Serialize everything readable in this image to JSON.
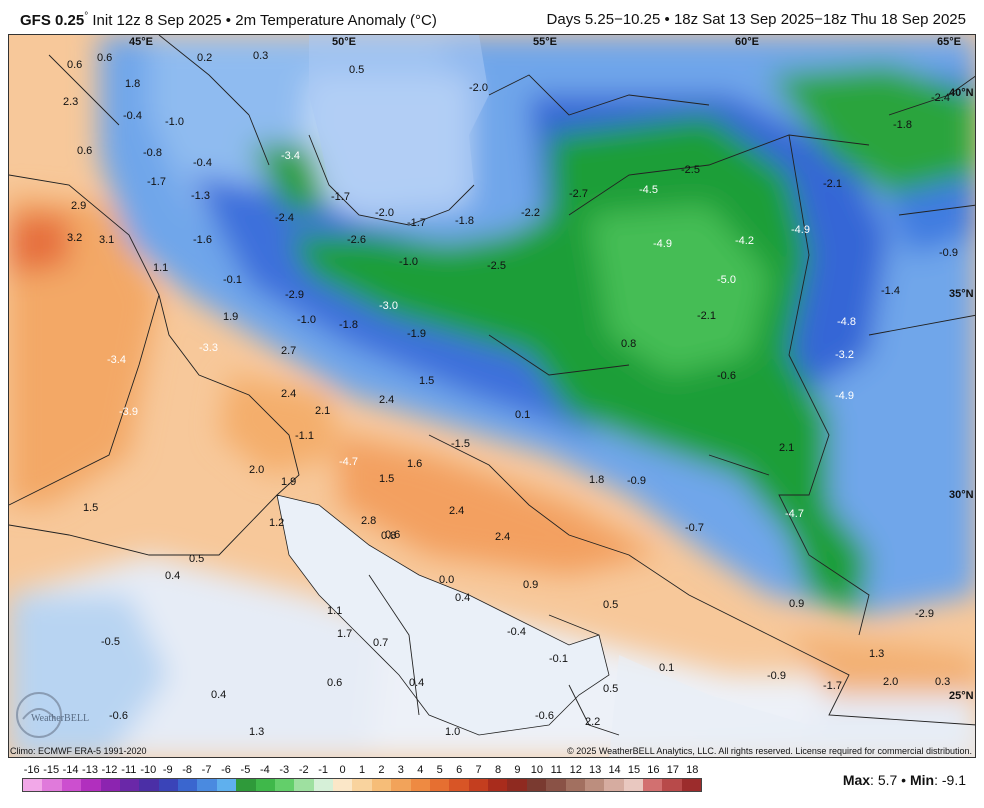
{
  "header": {
    "model": "GFS 0.25",
    "degree": "°",
    "init": " Init 12z 8 Sep 2025 • 2m Temperature Anomaly (°C)",
    "valid": "Days 5.25−10.25 • 18z Sat 13 Sep 2025−18z Thu 18 Sep 2025"
  },
  "map": {
    "lon_labels": [
      "45°E",
      "50°E",
      "55°E",
      "60°E",
      "65°E"
    ],
    "lat_labels": [
      "40°N",
      "35°N",
      "30°N",
      "25°N"
    ],
    "watermark": "WeatherBELL",
    "anomaly_labels": [
      "0.6",
      "0.6",
      "0.2",
      "0.3",
      "0.5",
      "-2.0",
      "1.8",
      "-2.4",
      "-1.8",
      "2.3",
      "-0.4",
      "-1.0",
      "0.6",
      "-0.8",
      "-3.4",
      "-0.4",
      "-1.7",
      "-1.3",
      "-1.7",
      "2.9",
      "-2.4",
      "-2.0",
      "-1.7",
      "-1.8",
      "-2.2",
      "-2.7",
      "-4.5",
      "-2.5",
      "-2.1",
      "3.2",
      "3.1",
      "-1.6",
      "-2.6",
      "-4.9",
      "-4.2",
      "-4.9",
      "-0.9",
      "1.1",
      "-0.1",
      "-1.0",
      "-2.5",
      "-5.0",
      "-1.4",
      "-2.9",
      "-3.0",
      "1.9",
      "-1.0",
      "-1.8",
      "-1.9",
      "-2.1",
      "-4.8",
      "-3.3",
      "0.8",
      "-3.2",
      "-3.4",
      "2.7",
      "1.5",
      "-0.6",
      "-4.9",
      "-3.9",
      "2.4",
      "2.1",
      "2.4",
      "0.1",
      "-1.5",
      "-1.1",
      "2.1",
      "-4.7",
      "1.6",
      "2.0",
      "1.9",
      "1.5",
      "1.8",
      "-0.9",
      "1.5",
      "1.2",
      "2.8",
      "0.6",
      "2.4",
      "-4.7",
      "0.8",
      "-0.7",
      "2.4",
      "0.5",
      "0.4",
      "0.0",
      "0.9",
      "0.4",
      "0.9",
      "0.5",
      "-2.9",
      "1.1",
      "-0.5",
      "1.7",
      "0.7",
      "-0.4",
      "-0.1",
      "0.1",
      "-0.9",
      "1.3",
      "0.6",
      "0.4",
      "0.5",
      "-0.6",
      "-1.7",
      "2.0",
      "0.3",
      "0.4",
      "-0.6",
      "2.2",
      "1.3",
      "1.0",
      "0.4"
    ]
  },
  "footer": {
    "climo": "Climo: ECMWF ERA-5 1991-2020",
    "copyright": "© 2025 WeatherBELL Analytics, LLC. All rights reserved. License required for commercial distribution."
  },
  "colorbar": {
    "ticks": [
      "-16",
      "-15",
      "-14",
      "-13",
      "-12",
      "-11",
      "-10",
      "-9",
      "-8",
      "-7",
      "-6",
      "-5",
      "-4",
      "-3",
      "-2",
      "-1",
      "0",
      "1",
      "2",
      "3",
      "4",
      "5",
      "6",
      "7",
      "8",
      "9",
      "10",
      "11",
      "12",
      "13",
      "14",
      "15",
      "16",
      "17",
      "18"
    ],
    "colors": [
      "#f2a8e8",
      "#e07adb",
      "#cc4fcf",
      "#b12fbe",
      "#8c24b0",
      "#6a28a8",
      "#4b2fa6",
      "#3a44b8",
      "#3a66cf",
      "#4a8ae0",
      "#5fb0ee",
      "#2f9a3a",
      "#3fb84a",
      "#63cf6a",
      "#9ee0a0",
      "#d6f0d8",
      "#fbe7c8",
      "#f9d39e",
      "#f6bd78",
      "#f2a35a",
      "#ee8a42",
      "#e66f31",
      "#d85526",
      "#c43e1f",
      "#a92c1c",
      "#8f2a20",
      "#7a3a30",
      "#8a5246",
      "#a27060",
      "#bc8e7e",
      "#d6aca0",
      "#e9c8c0",
      "#d27070",
      "#b84a4a",
      "#9c2c2c"
    ]
  },
  "stats": {
    "max_label": "Max",
    "max_value": "5.7",
    "sep": " • ",
    "min_label": "Min",
    "min_value": "-9.1"
  }
}
